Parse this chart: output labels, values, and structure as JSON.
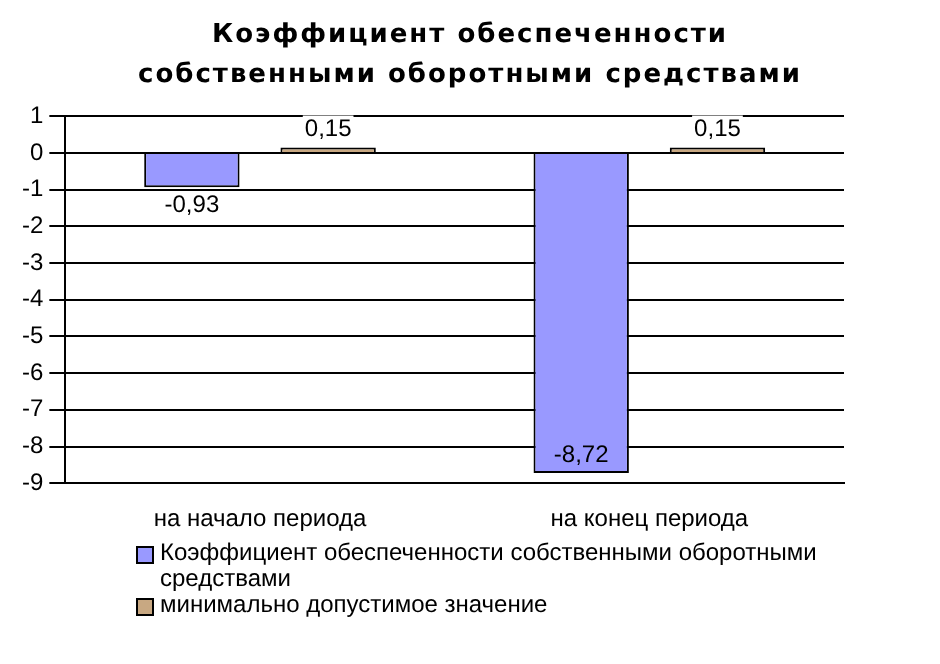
{
  "chart_data": {
    "type": "bar",
    "title": "Коэффициент обеспеченности собственными оборотными средствами",
    "categories": [
      "на начало периода",
      "на конец периода"
    ],
    "series": [
      {
        "name": "Коэффициент обеспеченности собственными оборотными средствами",
        "color": "#9999ff",
        "values": [
          -0.93,
          -8.72
        ],
        "value_labels": [
          "-0,93",
          "-8,72"
        ]
      },
      {
        "name": "минимально допустимое значение",
        "color": "#c8a882",
        "values": [
          0.15,
          0.15
        ],
        "value_labels": [
          "0,15",
          "0,15"
        ]
      }
    ],
    "ylim": [
      -9,
      1
    ],
    "yticks": [
      -9,
      -8,
      -7,
      -6,
      -5,
      -4,
      -3,
      -2,
      -1,
      0,
      1
    ],
    "grid": "y",
    "legend": "bottom"
  }
}
